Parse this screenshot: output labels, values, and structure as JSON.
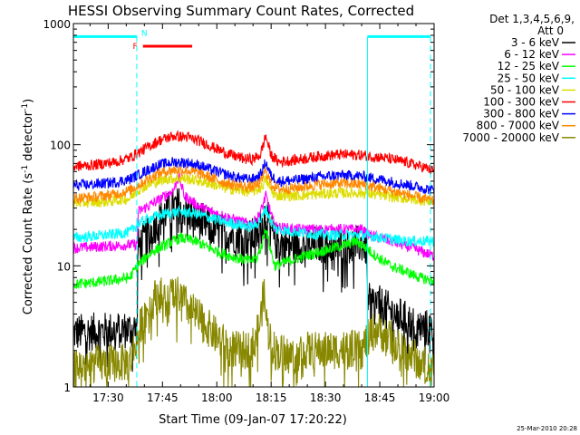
{
  "chart_data": {
    "type": "line",
    "title": "HESSI Observing Summary Count Rates, Corrected",
    "xlabel": "Start Time (09-Jan-07 17:20:22)",
    "ylabel_main": "Corrected Count Rate (s",
    "ylabel_sup1": "-1",
    "ylabel_mid": " detector",
    "ylabel_sup2": "-1",
    "ylabel_end": ")",
    "xlim": [
      20.4,
      120.0
    ],
    "ylim": [
      1,
      1000
    ],
    "yscale": "log",
    "x_unit": "minutes after 17:00 UT",
    "xticks": [
      {
        "value": 30,
        "label": "17:30"
      },
      {
        "value": 45,
        "label": "17:45"
      },
      {
        "value": 60,
        "label": "18:00"
      },
      {
        "value": 75,
        "label": "18:15"
      },
      {
        "value": 90,
        "label": "18:30"
      },
      {
        "value": 105,
        "label": "18:45"
      },
      {
        "value": 120,
        "label": "19:00"
      }
    ],
    "yticks": [
      {
        "value": 1,
        "label": "1"
      },
      {
        "value": 10,
        "label": "10"
      },
      {
        "value": 100,
        "label": "100"
      },
      {
        "value": 1000,
        "label": "1000"
      }
    ],
    "legend_header": [
      "Det 1,3,4,5,6,9,",
      "Att 0"
    ],
    "legend_position": "right",
    "series": [
      {
        "name": "3 - 6 keV",
        "color": "#000000",
        "points": [
          [
            20.4,
            2.8
          ],
          [
            38,
            3
          ],
          [
            38.2,
            14
          ],
          [
            42,
            20
          ],
          [
            46,
            28
          ],
          [
            50,
            32
          ],
          [
            53,
            26
          ],
          [
            57,
            22
          ],
          [
            61,
            19
          ],
          [
            65,
            18
          ],
          [
            69,
            17
          ],
          [
            71,
            18
          ],
          [
            72.5,
            22
          ],
          [
            73.5,
            28
          ],
          [
            74.5,
            22
          ],
          [
            76,
            16
          ],
          [
            80,
            15
          ],
          [
            85,
            15
          ],
          [
            90,
            15
          ],
          [
            96,
            15
          ],
          [
            100,
            15
          ],
          [
            101.5,
            14
          ],
          [
            101.8,
            5
          ],
          [
            104,
            5
          ],
          [
            108,
            4.2
          ],
          [
            112,
            3.6
          ],
          [
            116,
            3.1
          ],
          [
            120,
            3.0
          ]
        ]
      },
      {
        "name": "6 - 12 keV",
        "color": "#ff00ff",
        "points": [
          [
            20.4,
            14
          ],
          [
            38,
            15
          ],
          [
            38.3,
            28
          ],
          [
            44,
            35
          ],
          [
            48,
            42
          ],
          [
            49.5,
            55
          ],
          [
            51,
            38
          ],
          [
            55,
            31
          ],
          [
            60,
            27
          ],
          [
            65,
            24
          ],
          [
            69,
            22
          ],
          [
            71,
            24
          ],
          [
            72.5,
            30
          ],
          [
            73.5,
            38
          ],
          [
            74.5,
            30
          ],
          [
            76,
            21
          ],
          [
            82,
            20
          ],
          [
            90,
            20
          ],
          [
            100,
            20
          ],
          [
            102,
            18
          ],
          [
            108,
            16
          ],
          [
            114,
            14
          ],
          [
            120,
            12
          ]
        ]
      },
      {
        "name": "12 - 25 keV",
        "color": "#00ff00",
        "points": [
          [
            20.4,
            7
          ],
          [
            30,
            7.5
          ],
          [
            36,
            8
          ],
          [
            38,
            10
          ],
          [
            42,
            13
          ],
          [
            46,
            15
          ],
          [
            50,
            17
          ],
          [
            54,
            16
          ],
          [
            58,
            14
          ],
          [
            62,
            12.5
          ],
          [
            66,
            11.5
          ],
          [
            69,
            11
          ],
          [
            71,
            11.5
          ],
          [
            72.5,
            15
          ],
          [
            73.5,
            21
          ],
          [
            74.5,
            15
          ],
          [
            76,
            10
          ],
          [
            80,
            11
          ],
          [
            84,
            12
          ],
          [
            88,
            13
          ],
          [
            92,
            14
          ],
          [
            96,
            15
          ],
          [
            98,
            16
          ],
          [
            100,
            15
          ],
          [
            104,
            12
          ],
          [
            108,
            10
          ],
          [
            112,
            9
          ],
          [
            116,
            8
          ],
          [
            120,
            7.5
          ]
        ]
      },
      {
        "name": "25 - 50 keV",
        "color": "#00ffff",
        "points": [
          [
            20.4,
            17
          ],
          [
            30,
            18
          ],
          [
            36,
            19
          ],
          [
            38,
            22
          ],
          [
            42,
            25
          ],
          [
            46,
            27
          ],
          [
            50,
            28
          ],
          [
            54,
            27
          ],
          [
            58,
            25
          ],
          [
            62,
            23
          ],
          [
            66,
            22
          ],
          [
            69,
            21
          ],
          [
            71,
            22
          ],
          [
            72.5,
            25
          ],
          [
            73.5,
            30
          ],
          [
            74.5,
            25
          ],
          [
            76,
            20
          ],
          [
            82,
            19
          ],
          [
            90,
            18
          ],
          [
            100,
            18
          ],
          [
            106,
            17
          ],
          [
            112,
            16
          ],
          [
            120,
            16
          ]
        ]
      },
      {
        "name": "50 - 100 keV",
        "color": "#dddd00",
        "points": [
          [
            20.4,
            33
          ],
          [
            30,
            34
          ],
          [
            36,
            36
          ],
          [
            38,
            42
          ],
          [
            42,
            48
          ],
          [
            46,
            52
          ],
          [
            50,
            53
          ],
          [
            54,
            51
          ],
          [
            58,
            48
          ],
          [
            62,
            44
          ],
          [
            66,
            42
          ],
          [
            69,
            41
          ],
          [
            71,
            42
          ],
          [
            72.5,
            45
          ],
          [
            73.5,
            52
          ],
          [
            74.5,
            45
          ],
          [
            76,
            38
          ],
          [
            82,
            38
          ],
          [
            88,
            39
          ],
          [
            94,
            40
          ],
          [
            100,
            40
          ],
          [
            106,
            38
          ],
          [
            112,
            36
          ],
          [
            120,
            34
          ]
        ]
      },
      {
        "name": "100 - 300 keV",
        "color": "#ff0000",
        "points": [
          [
            20.4,
            66
          ],
          [
            26,
            68
          ],
          [
            32,
            72
          ],
          [
            36,
            78
          ],
          [
            40,
            92
          ],
          [
            44,
            108
          ],
          [
            48,
            118
          ],
          [
            52,
            115
          ],
          [
            56,
            105
          ],
          [
            60,
            92
          ],
          [
            64,
            82
          ],
          [
            68,
            76
          ],
          [
            70,
            76
          ],
          [
            72,
            82
          ],
          [
            73.5,
            118
          ],
          [
            75,
            82
          ],
          [
            77,
            72
          ],
          [
            82,
            75
          ],
          [
            88,
            80
          ],
          [
            94,
            83
          ],
          [
            100,
            82
          ],
          [
            106,
            78
          ],
          [
            112,
            72
          ],
          [
            118,
            64
          ],
          [
            120,
            60
          ]
        ]
      },
      {
        "name": "300 - 800 keV",
        "color": "#0000ff",
        "points": [
          [
            20.4,
            46
          ],
          [
            26,
            47
          ],
          [
            32,
            49
          ],
          [
            36,
            52
          ],
          [
            40,
            60
          ],
          [
            44,
            68
          ],
          [
            48,
            72
          ],
          [
            52,
            71
          ],
          [
            56,
            66
          ],
          [
            60,
            60
          ],
          [
            64,
            55
          ],
          [
            68,
            52
          ],
          [
            70,
            52
          ],
          [
            72,
            56
          ],
          [
            73.5,
            72
          ],
          [
            75,
            55
          ],
          [
            77,
            50
          ],
          [
            82,
            51
          ],
          [
            88,
            54
          ],
          [
            94,
            56
          ],
          [
            100,
            55
          ],
          [
            106,
            51
          ],
          [
            112,
            47
          ],
          [
            120,
            42
          ]
        ]
      },
      {
        "name": "800 - 7000 keV",
        "color": "#ff8800",
        "points": [
          [
            20.4,
            36
          ],
          [
            26,
            37
          ],
          [
            32,
            39
          ],
          [
            36,
            42
          ],
          [
            40,
            50
          ],
          [
            44,
            58
          ],
          [
            48,
            62
          ],
          [
            52,
            61
          ],
          [
            56,
            57
          ],
          [
            60,
            51
          ],
          [
            64,
            47
          ],
          [
            68,
            45
          ],
          [
            70,
            45
          ],
          [
            72,
            48
          ],
          [
            73.5,
            62
          ],
          [
            75,
            47
          ],
          [
            77,
            43
          ],
          [
            82,
            44
          ],
          [
            88,
            47
          ],
          [
            94,
            48
          ],
          [
            100,
            47
          ],
          [
            106,
            43
          ],
          [
            112,
            39
          ],
          [
            120,
            34
          ]
        ]
      },
      {
        "name": "7000 - 20000 keV",
        "color": "#888800",
        "points": [
          [
            20.4,
            1.5
          ],
          [
            36,
            1.6
          ],
          [
            38,
            2.5
          ],
          [
            40,
            4
          ],
          [
            42,
            5
          ],
          [
            44,
            6
          ],
          [
            46,
            5
          ],
          [
            48,
            6
          ],
          [
            50,
            5.5
          ],
          [
            52,
            4.5
          ],
          [
            54,
            4
          ],
          [
            56,
            3.5
          ],
          [
            58,
            3
          ],
          [
            60,
            2.6
          ],
          [
            62,
            2.3
          ],
          [
            64,
            2.1
          ],
          [
            66,
            2
          ],
          [
            68,
            2
          ],
          [
            70,
            2.2
          ],
          [
            72,
            3.5
          ],
          [
            73,
            6
          ],
          [
            74,
            3
          ],
          [
            76,
            2
          ],
          [
            80,
            1.8
          ],
          [
            84,
            2
          ],
          [
            88,
            2
          ],
          [
            92,
            2
          ],
          [
            96,
            2.1
          ],
          [
            100,
            2
          ],
          [
            102,
            2.6
          ],
          [
            104,
            3
          ],
          [
            108,
            2.5
          ],
          [
            112,
            2
          ],
          [
            116,
            1.6
          ],
          [
            120,
            1.4
          ]
        ]
      }
    ],
    "annotations": {
      "segment_marker": "F",
      "segment_marker2": "N",
      "cyan_bars": [
        [
          20.4,
          37.9
        ],
        [
          101.6,
          119.0
        ]
      ],
      "red_bar": [
        39.6,
        53.2
      ],
      "vertical_lines": [
        {
          "x": 37.9,
          "style": "dashed"
        },
        {
          "x": 101.6,
          "style": "solid"
        },
        {
          "x": 119.0,
          "style": "dashed"
        }
      ],
      "bar_level": 780,
      "red_level": 650
    }
  },
  "footer_date": "25-Mar-2010 20:28",
  "colors": {
    "annotation_cyan": "#00ffff",
    "annotation_red": "#ff0000",
    "axis": "#000000",
    "background": "#ffffff"
  }
}
